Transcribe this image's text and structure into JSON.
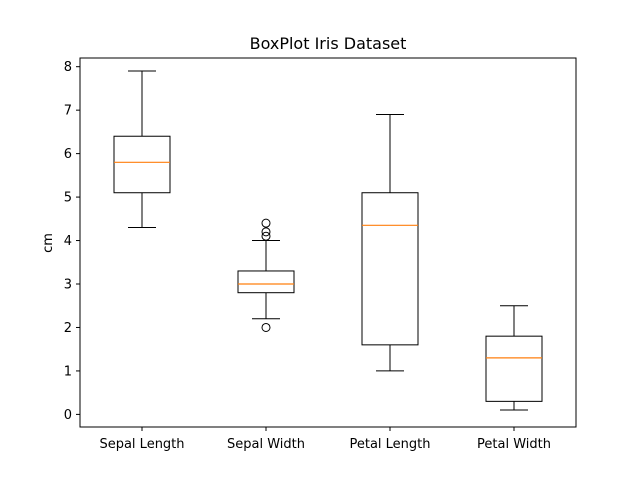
{
  "chart_data": {
    "type": "box",
    "title": "BoxPlot Iris Dataset",
    "xlabel": "",
    "ylabel": "cm",
    "ylim": [
      -0.29,
      8.2
    ],
    "yticks": [
      0,
      1,
      2,
      3,
      4,
      5,
      6,
      7,
      8
    ],
    "grid": false,
    "categories": [
      "Sepal Length",
      "Sepal Width",
      "Petal Length",
      "Petal Width"
    ],
    "boxes": [
      {
        "whisker_low": 4.3,
        "q1": 5.1,
        "median": 5.8,
        "q3": 6.4,
        "whisker_high": 7.9,
        "outliers": []
      },
      {
        "whisker_low": 2.2,
        "q1": 2.8,
        "median": 3.0,
        "q3": 3.3,
        "whisker_high": 4.0,
        "outliers": [
          4.4,
          4.1,
          4.2,
          2.0
        ]
      },
      {
        "whisker_low": 1.0,
        "q1": 1.6,
        "median": 4.35,
        "q3": 5.1,
        "whisker_high": 6.9,
        "outliers": []
      },
      {
        "whisker_low": 0.1,
        "q1": 0.3,
        "median": 1.3,
        "q3": 1.8,
        "whisker_high": 2.5,
        "outliers": []
      }
    ],
    "colors": {
      "box": "#000000",
      "median": "#ff7f0e",
      "outlier": "#000000"
    }
  }
}
